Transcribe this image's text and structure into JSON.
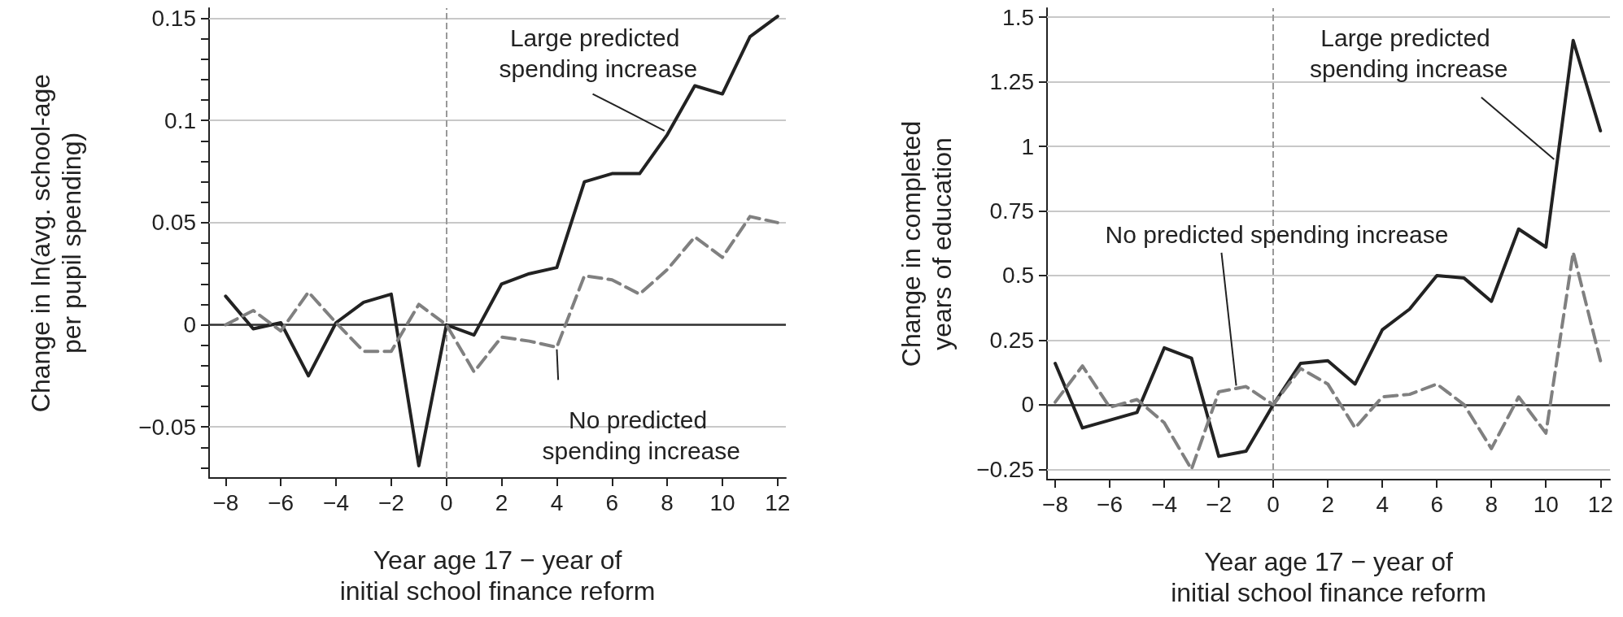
{
  "chart_data": [
    {
      "type": "line",
      "xlabel": "Year age 17 − year of\ninitial school finance reform",
      "ylabel": "Change in ln(avg. school-age\nper pupil spending)",
      "x": [
        -8,
        -7,
        -6,
        -5,
        -4,
        -3,
        -2,
        -1,
        0,
        1,
        2,
        3,
        4,
        5,
        6,
        7,
        8,
        9,
        10,
        11,
        12
      ],
      "series": [
        {
          "color": "#222222",
          "line_style": "solid",
          "values": [
            0.014,
            -0.002,
            0.001,
            -0.025,
            0.001,
            0.011,
            0.015,
            -0.069,
            0,
            -0.005,
            0.02,
            0.025,
            0.028,
            0.07,
            0.074,
            0.074,
            0.093,
            0.117,
            0.113,
            0.141,
            0.151
          ]
        },
        {
          "color": "#808080",
          "line_style": "dashed",
          "values": [
            0,
            0.007,
            -0.003,
            0.016,
            0.001,
            -0.013,
            -0.013,
            0.01,
            0,
            -0.023,
            -0.006,
            -0.008,
            -0.011,
            0.024,
            0.022,
            0.015,
            0.027,
            0.043,
            0.033,
            0.053,
            0.05
          ]
        }
      ],
      "xlim": [
        -8.6,
        12.3
      ],
      "xticks": [
        {
          "value": -8,
          "label": "−8"
        },
        {
          "value": -6,
          "label": "−6"
        },
        {
          "value": -4,
          "label": "−4"
        },
        {
          "value": -2,
          "label": "−2"
        },
        0,
        2,
        4,
        6,
        8,
        10,
        12
      ],
      "ylim": [
        -0.075,
        0.155
      ],
      "yticks": [
        {
          "value": -0.07,
          "label": null
        },
        {
          "value": -0.06,
          "label": null
        },
        {
          "value": -0.05,
          "label": "−0.05"
        },
        {
          "value": -0.04,
          "label": null
        },
        {
          "value": -0.03,
          "label": null
        },
        {
          "value": -0.02,
          "label": null
        },
        {
          "value": -0.01,
          "label": null
        },
        0,
        {
          "value": 0.01,
          "label": null
        },
        {
          "value": 0.02,
          "label": null
        },
        {
          "value": 0.03,
          "label": null
        },
        {
          "value": 0.04,
          "label": null
        },
        0.05,
        {
          "value": 0.06,
          "label": null
        },
        {
          "value": 0.07,
          "label": null
        },
        {
          "value": 0.08,
          "label": null
        },
        {
          "value": 0.09,
          "label": null
        },
        0.1,
        {
          "value": 0.11,
          "label": null
        },
        {
          "value": 0.12,
          "label": null
        },
        {
          "value": 0.13,
          "label": null
        },
        {
          "value": 0.14,
          "label": null
        },
        0.15
      ],
      "grid": "y",
      "marker": "none",
      "ref_lines": [
        {
          "axis": "x",
          "value": 0,
          "color": "#999999",
          "line_style": "dashed"
        },
        {
          "axis": "y",
          "value": 0,
          "color": "#333333",
          "line_style": "solid"
        }
      ],
      "annotations": [
        {
          "text": "Large predicted spending increase",
          "x": 7.9,
          "y": 0.095
        },
        {
          "text": "No predicted spending increase",
          "x": 4,
          "y": -0.012
        }
      ]
    },
    {
      "type": "line",
      "xlabel": "Year age 17 − year of\ninitial school finance reform",
      "ylabel": "Change in completed\nyears of education",
      "x": [
        -8,
        -7,
        -6,
        -5,
        -4,
        -3,
        -2,
        -1,
        0,
        1,
        2,
        3,
        4,
        5,
        6,
        7,
        8,
        9,
        10,
        11,
        12
      ],
      "series": [
        {
          "color": "#222222",
          "line_style": "solid",
          "values": [
            0.16,
            -0.09,
            -0.06,
            -0.03,
            0.22,
            0.18,
            -0.2,
            -0.18,
            0,
            0.16,
            0.17,
            0.08,
            0.29,
            0.37,
            0.5,
            0.49,
            0.4,
            0.68,
            0.61,
            1.41,
            1.06
          ]
        },
        {
          "color": "#808080",
          "line_style": "dashed",
          "values": [
            0.01,
            0.15,
            -0.01,
            0.02,
            -0.07,
            -0.25,
            0.05,
            0.07,
            0,
            0.14,
            0.08,
            -0.09,
            0.03,
            0.04,
            0.08,
            0,
            -0.17,
            0.03,
            -0.11,
            0.59,
            0.17
          ]
        }
      ],
      "xlim": [
        -8.3,
        12.35
      ],
      "xticks": [
        {
          "value": -8,
          "label": "−8"
        },
        {
          "value": -6,
          "label": "−6"
        },
        {
          "value": -4,
          "label": "−4"
        },
        {
          "value": -2,
          "label": "−2"
        },
        0,
        2,
        4,
        6,
        8,
        10,
        12
      ],
      "ylim": [
        -0.29,
        1.535
      ],
      "yticks": [
        {
          "value": -0.25,
          "label": "−0.25"
        },
        0,
        0.25,
        0.5,
        0.75,
        1,
        1.25,
        1.5
      ],
      "grid": "y",
      "marker": "none",
      "ref_lines": [
        {
          "axis": "x",
          "value": 0,
          "color": "#999999",
          "line_style": "dashed"
        },
        {
          "axis": "y",
          "value": 0,
          "color": "#333333",
          "line_style": "solid"
        }
      ],
      "annotations": [
        {
          "text": "Large predicted spending increase",
          "x": 10.3,
          "y": 0.95
        },
        {
          "text": "No predicted spending increase",
          "x": -1.36,
          "y": 0.074
        }
      ]
    }
  ]
}
